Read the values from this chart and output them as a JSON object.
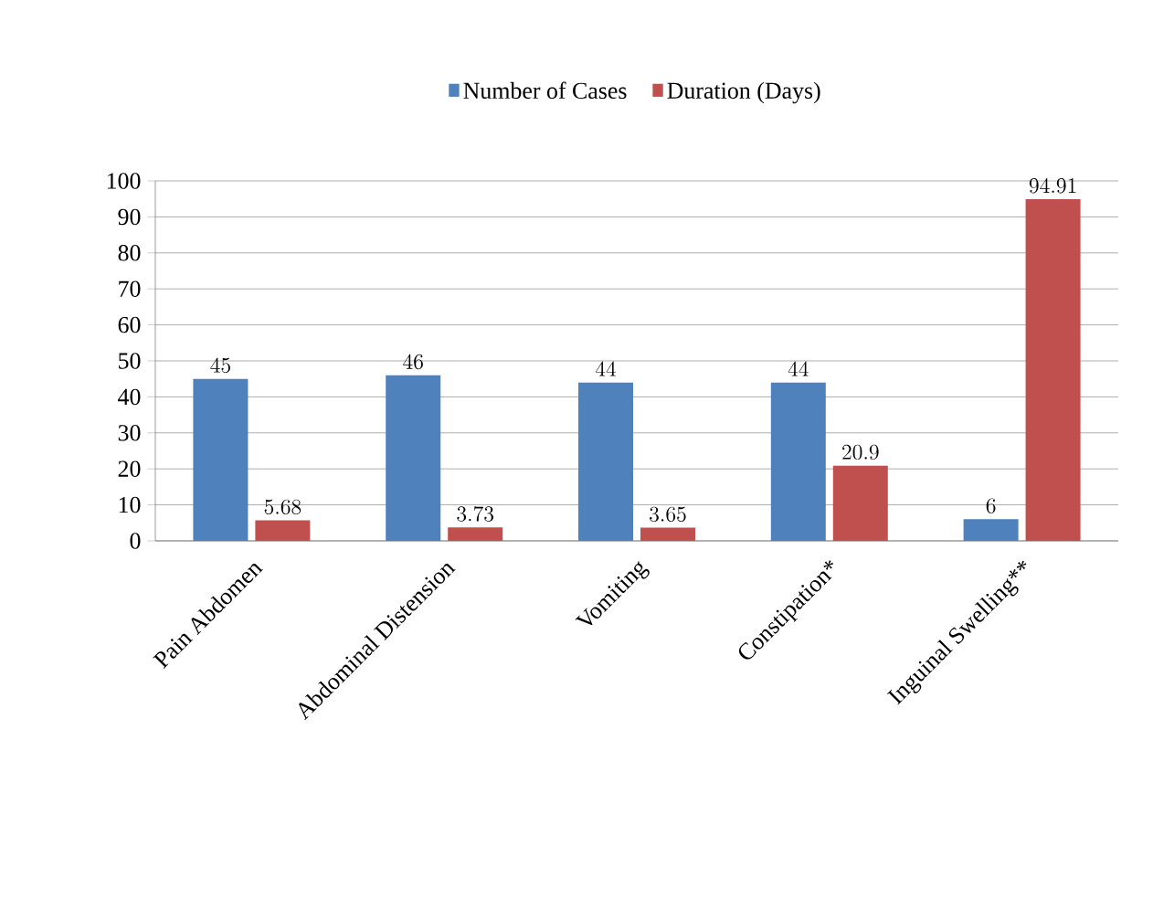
{
  "chart_data": {
    "type": "bar",
    "categories": [
      "Pain Abdomen",
      "Abdominal Distension",
      "Vomiting",
      "Constipation*",
      "Inguinal Swelling**"
    ],
    "series": [
      {
        "name": "Number of Cases",
        "color": "#4f81bd",
        "values": [
          45,
          46,
          44,
          44,
          6
        ]
      },
      {
        "name": "Duration (Days)",
        "color": "#c0504d",
        "values": [
          5.68,
          3.73,
          3.65,
          20.9,
          94.91
        ]
      }
    ],
    "ylim": [
      0,
      100
    ],
    "yticks": [
      0,
      10,
      20,
      30,
      40,
      50,
      60,
      70,
      80,
      90,
      100
    ],
    "grid": "y",
    "legend": "top",
    "data_labels": true
  }
}
